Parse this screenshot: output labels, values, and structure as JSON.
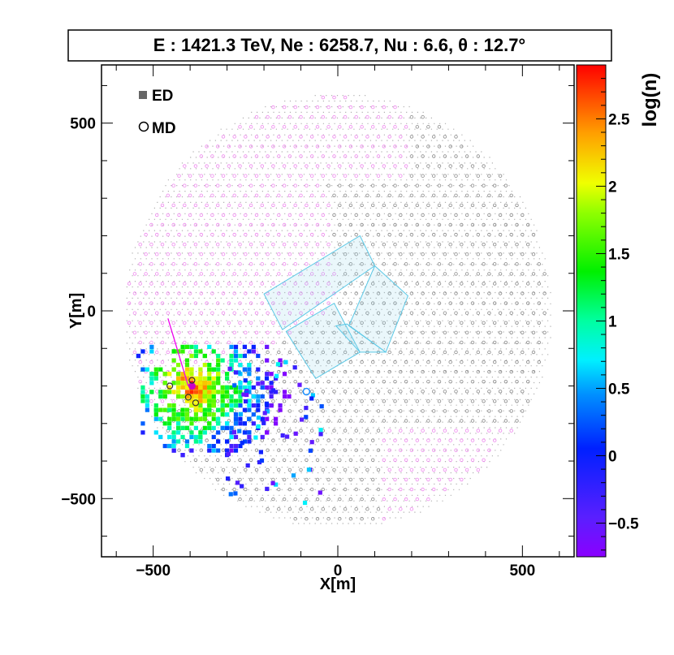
{
  "chart_data": {
    "type": "scatter",
    "title": "E : 1421.3 TeV,  Ne : 6258.7,  Nu : 6.6, θ : 12.7°",
    "xlabel": "X[m]",
    "ylabel": "Y[m]",
    "xlim": [
      -640,
      640
    ],
    "ylim": [
      -655,
      655
    ],
    "x_ticks": [
      -500,
      0,
      500
    ],
    "y_ticks": [
      -500,
      0,
      500
    ],
    "x_tick_labels": [
      "−500",
      "0",
      "500"
    ],
    "y_tick_labels": [
      "−500",
      "0",
      "500"
    ],
    "legend": {
      "placement": "top-left",
      "entries": [
        {
          "label": "ED",
          "marker": "filled-square",
          "color": "#666666"
        },
        {
          "label": "MD",
          "marker": "open-circle",
          "color": "#000000"
        }
      ]
    },
    "colorbar": {
      "label": "log(n)",
      "min": -0.75,
      "max": 2.9,
      "ticks": [
        -0.5,
        0,
        0.5,
        1,
        1.5,
        2,
        2.5
      ],
      "tick_labels": [
        "−0.5",
        "0",
        "0.5",
        "1",
        "1.5",
        "2",
        "2.5"
      ]
    },
    "array_extent": {
      "center": [
        0,
        0
      ],
      "radius": 580
    },
    "core": {
      "x": -395,
      "y": -200
    },
    "arrow": {
      "from": [
        -460,
        -20
      ],
      "to": [
        -405,
        -200
      ],
      "color": "#ee00ee"
    },
    "ponds": [
      [
        [
          -200,
          45
        ],
        [
          60,
          200
        ],
        [
          100,
          120
        ],
        [
          -150,
          -50
        ]
      ],
      [
        [
          100,
          120
        ],
        [
          190,
          40
        ],
        [
          130,
          -110
        ],
        [
          30,
          -40
        ]
      ],
      [
        [
          -140,
          -55
        ],
        [
          -10,
          20
        ],
        [
          60,
          -110
        ],
        [
          -60,
          -180
        ]
      ],
      [
        [
          25,
          -35
        ],
        [
          130,
          -110
        ],
        [
          60,
          -110
        ],
        [
          -5,
          -40
        ]
      ]
    ],
    "colors": {
      "md_gray": "#8a8a8a",
      "md_pink": "#ee88ee",
      "pond": "#5bc8e6",
      "frame": "#000000"
    }
  }
}
